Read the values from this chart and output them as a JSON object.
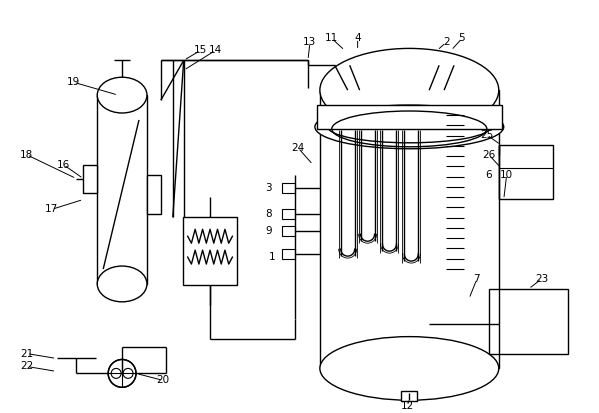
{
  "background_color": "#ffffff",
  "line_color": "#000000",
  "lw": 1.0,
  "fig_width": 5.99,
  "fig_height": 4.13
}
